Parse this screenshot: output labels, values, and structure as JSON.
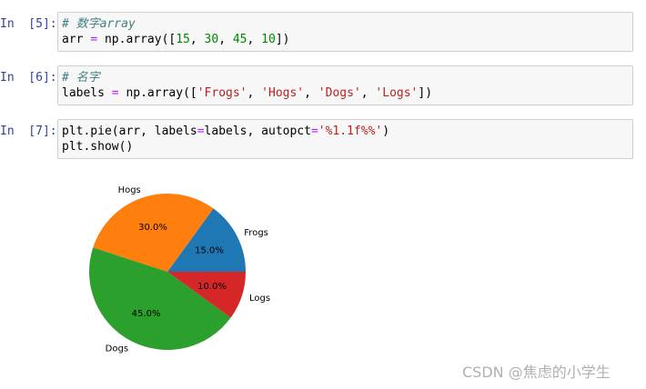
{
  "cells": [
    {
      "prompt": "In  [5]:",
      "lines": [
        [
          {
            "text": "# 数字array",
            "color": "#408080",
            "italic": true
          }
        ],
        [
          {
            "text": "arr ",
            "color": "#000000"
          },
          {
            "text": "=",
            "color": "#aa22ff"
          },
          {
            "text": " np.array([",
            "color": "#000000"
          },
          {
            "text": "15",
            "color": "#008800"
          },
          {
            "text": ", ",
            "color": "#000000"
          },
          {
            "text": "30",
            "color": "#008800"
          },
          {
            "text": ", ",
            "color": "#000000"
          },
          {
            "text": "45",
            "color": "#008800"
          },
          {
            "text": ", ",
            "color": "#000000"
          },
          {
            "text": "10",
            "color": "#008800"
          },
          {
            "text": "])",
            "color": "#000000"
          }
        ]
      ]
    },
    {
      "prompt": "In  [6]:",
      "lines": [
        [
          {
            "text": "# 名字",
            "color": "#408080",
            "italic": true
          }
        ],
        [
          {
            "text": "labels ",
            "color": "#000000"
          },
          {
            "text": "=",
            "color": "#aa22ff"
          },
          {
            "text": " np.array([",
            "color": "#000000"
          },
          {
            "text": "'Frogs'",
            "color": "#ba2121"
          },
          {
            "text": ", ",
            "color": "#000000"
          },
          {
            "text": "'Hogs'",
            "color": "#ba2121"
          },
          {
            "text": ", ",
            "color": "#000000"
          },
          {
            "text": "'Dogs'",
            "color": "#ba2121"
          },
          {
            "text": ", ",
            "color": "#000000"
          },
          {
            "text": "'Logs'",
            "color": "#ba2121"
          },
          {
            "text": "])",
            "color": "#000000"
          }
        ]
      ]
    },
    {
      "prompt": "In  [7]:",
      "lines": [
        [
          {
            "text": "plt.pie(arr, labels",
            "color": "#000000"
          },
          {
            "text": "=",
            "color": "#aa22ff"
          },
          {
            "text": "labels, autopct",
            "color": "#000000"
          },
          {
            "text": "=",
            "color": "#aa22ff"
          },
          {
            "text": "'%1.1f%%'",
            "color": "#ba2121"
          },
          {
            "text": ")",
            "color": "#000000"
          }
        ],
        [
          {
            "text": "plt.show()",
            "color": "#000000"
          }
        ]
      ]
    }
  ],
  "chart_data": {
    "type": "pie",
    "categories": [
      "Frogs",
      "Hogs",
      "Dogs",
      "Logs"
    ],
    "values": [
      15,
      30,
      45,
      10
    ],
    "value_labels": [
      "15.0%",
      "30.0%",
      "45.0%",
      "10.0%"
    ],
    "colors": [
      "#1f77b4",
      "#ff7f0e",
      "#2ca02c",
      "#d62728"
    ]
  },
  "watermark": "CSDN @焦虑的小学生"
}
